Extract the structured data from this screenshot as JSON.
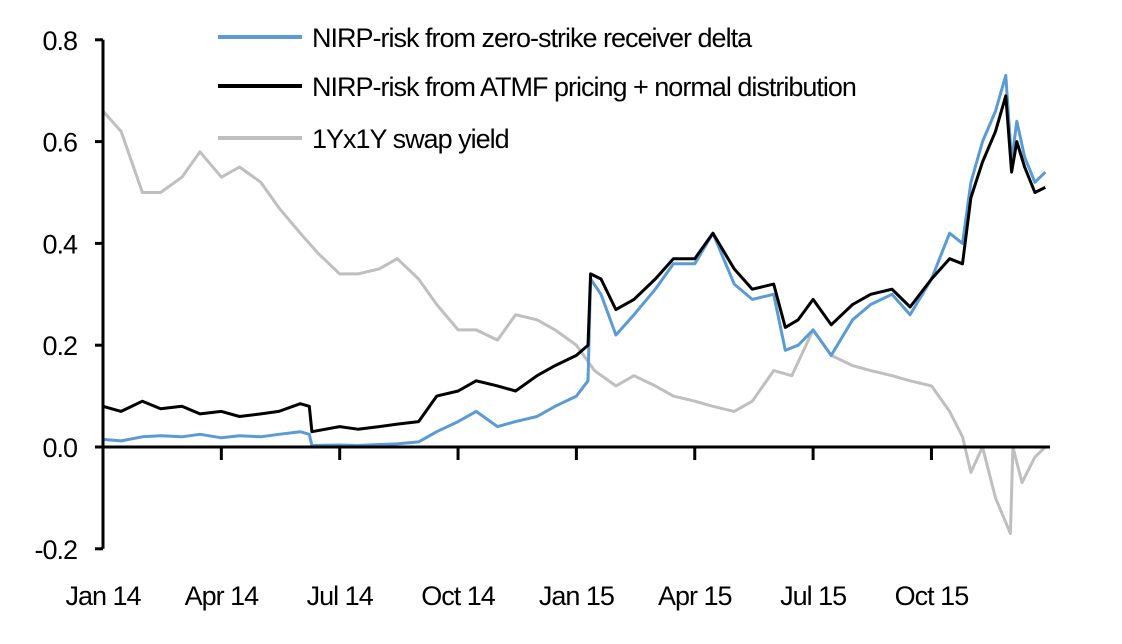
{
  "chart_data": {
    "type": "line",
    "title": "",
    "xlabel": "",
    "ylabel": "",
    "ylim": [
      -0.2,
      0.8
    ],
    "yticks": [
      "0.8",
      "0.6",
      "0.4",
      "0.2",
      "0.0",
      "-0.2"
    ],
    "ytick_values": [
      0.8,
      0.6,
      0.4,
      0.2,
      0.0,
      -0.2
    ],
    "xticks": [
      {
        "label": "Jan 14",
        "date": "2014-01-01"
      },
      {
        "label": "Apr 14",
        "date": "2014-04-01"
      },
      {
        "label": "Jul 14",
        "date": "2014-07-01"
      },
      {
        "label": "Oct 14",
        "date": "2014-10-01"
      },
      {
        "label": "Jan 15",
        "date": "2015-01-01"
      },
      {
        "label": "Apr 15",
        "date": "2015-04-01"
      },
      {
        "label": "Jul 15",
        "date": "2015-07-01"
      },
      {
        "label": "Oct 15",
        "date": "2015-10-01"
      }
    ],
    "grid": false,
    "legend_position": "top-center",
    "series": [
      {
        "name": "NIRP-risk from zero-strike receiver delta",
        "color": "#5b9bd5",
        "points": [
          [
            "2014-01-01",
            0.015
          ],
          [
            "2014-01-15",
            0.012
          ],
          [
            "2014-02-01",
            0.02
          ],
          [
            "2014-02-15",
            0.022
          ],
          [
            "2014-03-01",
            0.02
          ],
          [
            "2014-03-15",
            0.025
          ],
          [
            "2014-04-01",
            0.018
          ],
          [
            "2014-04-15",
            0.022
          ],
          [
            "2014-05-01",
            0.02
          ],
          [
            "2014-05-15",
            0.025
          ],
          [
            "2014-06-01",
            0.03
          ],
          [
            "2014-06-08",
            0.025
          ],
          [
            "2014-06-10",
            0.003
          ],
          [
            "2014-07-01",
            0.004
          ],
          [
            "2014-07-15",
            0.003
          ],
          [
            "2014-08-01",
            0.005
          ],
          [
            "2014-08-15",
            0.006
          ],
          [
            "2014-09-01",
            0.01
          ],
          [
            "2014-09-15",
            0.03
          ],
          [
            "2014-10-01",
            0.05
          ],
          [
            "2014-10-15",
            0.07
          ],
          [
            "2014-11-01",
            0.04
          ],
          [
            "2014-11-15",
            0.05
          ],
          [
            "2014-12-01",
            0.06
          ],
          [
            "2014-12-15",
            0.08
          ],
          [
            "2015-01-01",
            0.1
          ],
          [
            "2015-01-10",
            0.13
          ],
          [
            "2015-01-12",
            0.33
          ],
          [
            "2015-01-20",
            0.3
          ],
          [
            "2015-02-01",
            0.22
          ],
          [
            "2015-02-15",
            0.26
          ],
          [
            "2015-03-01",
            0.31
          ],
          [
            "2015-03-15",
            0.36
          ],
          [
            "2015-04-01",
            0.36
          ],
          [
            "2015-04-15",
            0.42
          ],
          [
            "2015-05-01",
            0.32
          ],
          [
            "2015-05-15",
            0.29
          ],
          [
            "2015-06-01",
            0.3
          ],
          [
            "2015-06-10",
            0.19
          ],
          [
            "2015-06-20",
            0.2
          ],
          [
            "2015-07-01",
            0.23
          ],
          [
            "2015-07-15",
            0.18
          ],
          [
            "2015-08-01",
            0.25
          ],
          [
            "2015-08-15",
            0.28
          ],
          [
            "2015-09-01",
            0.3
          ],
          [
            "2015-09-15",
            0.26
          ],
          [
            "2015-10-01",
            0.33
          ],
          [
            "2015-10-15",
            0.42
          ],
          [
            "2015-10-25",
            0.4
          ],
          [
            "2015-11-01",
            0.52
          ],
          [
            "2015-11-10",
            0.6
          ],
          [
            "2015-11-20",
            0.66
          ],
          [
            "2015-11-28",
            0.73
          ],
          [
            "2015-12-02",
            0.56
          ],
          [
            "2015-12-06",
            0.64
          ],
          [
            "2015-12-12",
            0.57
          ],
          [
            "2015-12-20",
            0.52
          ],
          [
            "2015-12-28",
            0.54
          ]
        ]
      },
      {
        "name": "NIRP-risk from ATMF pricing + normal distribution",
        "color": "#000000",
        "points": [
          [
            "2014-01-01",
            0.08
          ],
          [
            "2014-01-15",
            0.07
          ],
          [
            "2014-02-01",
            0.09
          ],
          [
            "2014-02-15",
            0.075
          ],
          [
            "2014-03-01",
            0.08
          ],
          [
            "2014-03-15",
            0.065
          ],
          [
            "2014-04-01",
            0.07
          ],
          [
            "2014-04-15",
            0.06
          ],
          [
            "2014-05-01",
            0.065
          ],
          [
            "2014-05-15",
            0.07
          ],
          [
            "2014-06-01",
            0.085
          ],
          [
            "2014-06-08",
            0.08
          ],
          [
            "2014-06-10",
            0.03
          ],
          [
            "2014-07-01",
            0.04
          ],
          [
            "2014-07-15",
            0.035
          ],
          [
            "2014-08-01",
            0.04
          ],
          [
            "2014-08-15",
            0.045
          ],
          [
            "2014-09-01",
            0.05
          ],
          [
            "2014-09-15",
            0.1
          ],
          [
            "2014-10-01",
            0.11
          ],
          [
            "2014-10-15",
            0.13
          ],
          [
            "2014-11-01",
            0.12
          ],
          [
            "2014-11-15",
            0.11
          ],
          [
            "2014-12-01",
            0.14
          ],
          [
            "2014-12-15",
            0.16
          ],
          [
            "2015-01-01",
            0.18
          ],
          [
            "2015-01-10",
            0.2
          ],
          [
            "2015-01-12",
            0.34
          ],
          [
            "2015-01-20",
            0.33
          ],
          [
            "2015-02-01",
            0.27
          ],
          [
            "2015-02-15",
            0.29
          ],
          [
            "2015-03-01",
            0.33
          ],
          [
            "2015-03-15",
            0.37
          ],
          [
            "2015-04-01",
            0.37
          ],
          [
            "2015-04-15",
            0.42
          ],
          [
            "2015-05-01",
            0.35
          ],
          [
            "2015-05-15",
            0.31
          ],
          [
            "2015-06-01",
            0.32
          ],
          [
            "2015-06-10",
            0.235
          ],
          [
            "2015-06-20",
            0.25
          ],
          [
            "2015-07-01",
            0.29
          ],
          [
            "2015-07-15",
            0.24
          ],
          [
            "2015-08-01",
            0.28
          ],
          [
            "2015-08-15",
            0.3
          ],
          [
            "2015-09-01",
            0.31
          ],
          [
            "2015-09-15",
            0.275
          ],
          [
            "2015-10-01",
            0.33
          ],
          [
            "2015-10-15",
            0.37
          ],
          [
            "2015-10-25",
            0.36
          ],
          [
            "2015-11-01",
            0.49
          ],
          [
            "2015-11-10",
            0.56
          ],
          [
            "2015-11-20",
            0.62
          ],
          [
            "2015-11-28",
            0.69
          ],
          [
            "2015-12-02",
            0.54
          ],
          [
            "2015-12-06",
            0.6
          ],
          [
            "2015-12-12",
            0.55
          ],
          [
            "2015-12-20",
            0.5
          ],
          [
            "2015-12-28",
            0.51
          ]
        ]
      },
      {
        "name": "1Yx1Y swap yield",
        "color": "#bfbfbf",
        "points": [
          [
            "2014-01-01",
            0.66
          ],
          [
            "2014-01-15",
            0.62
          ],
          [
            "2014-02-01",
            0.5
          ],
          [
            "2014-02-15",
            0.5
          ],
          [
            "2014-03-01",
            0.53
          ],
          [
            "2014-03-15",
            0.58
          ],
          [
            "2014-04-01",
            0.53
          ],
          [
            "2014-04-15",
            0.55
          ],
          [
            "2014-05-01",
            0.52
          ],
          [
            "2014-05-15",
            0.47
          ],
          [
            "2014-06-01",
            0.42
          ],
          [
            "2014-06-15",
            0.38
          ],
          [
            "2014-07-01",
            0.34
          ],
          [
            "2014-07-15",
            0.34
          ],
          [
            "2014-08-01",
            0.35
          ],
          [
            "2014-08-15",
            0.37
          ],
          [
            "2014-09-01",
            0.33
          ],
          [
            "2014-09-15",
            0.28
          ],
          [
            "2014-10-01",
            0.23
          ],
          [
            "2014-10-15",
            0.23
          ],
          [
            "2014-11-01",
            0.21
          ],
          [
            "2014-11-15",
            0.26
          ],
          [
            "2014-12-01",
            0.25
          ],
          [
            "2014-12-15",
            0.23
          ],
          [
            "2015-01-01",
            0.2
          ],
          [
            "2015-01-15",
            0.15
          ],
          [
            "2015-02-01",
            0.12
          ],
          [
            "2015-02-15",
            0.14
          ],
          [
            "2015-03-01",
            0.12
          ],
          [
            "2015-03-15",
            0.1
          ],
          [
            "2015-04-01",
            0.09
          ],
          [
            "2015-04-15",
            0.08
          ],
          [
            "2015-05-01",
            0.07
          ],
          [
            "2015-05-15",
            0.09
          ],
          [
            "2015-06-01",
            0.15
          ],
          [
            "2015-06-15",
            0.14
          ],
          [
            "2015-07-01",
            0.23
          ],
          [
            "2015-07-15",
            0.18
          ],
          [
            "2015-08-01",
            0.16
          ],
          [
            "2015-08-15",
            0.15
          ],
          [
            "2015-09-01",
            0.14
          ],
          [
            "2015-09-15",
            0.13
          ],
          [
            "2015-10-01",
            0.12
          ],
          [
            "2015-10-15",
            0.07
          ],
          [
            "2015-10-25",
            0.02
          ],
          [
            "2015-11-01",
            -0.05
          ],
          [
            "2015-11-10",
            0.0
          ],
          [
            "2015-11-20",
            -0.1
          ],
          [
            "2015-12-01",
            -0.17
          ],
          [
            "2015-12-03",
            0.0
          ],
          [
            "2015-12-10",
            -0.07
          ],
          [
            "2015-12-20",
            -0.02
          ],
          [
            "2015-12-28",
            0.0
          ]
        ]
      }
    ]
  }
}
